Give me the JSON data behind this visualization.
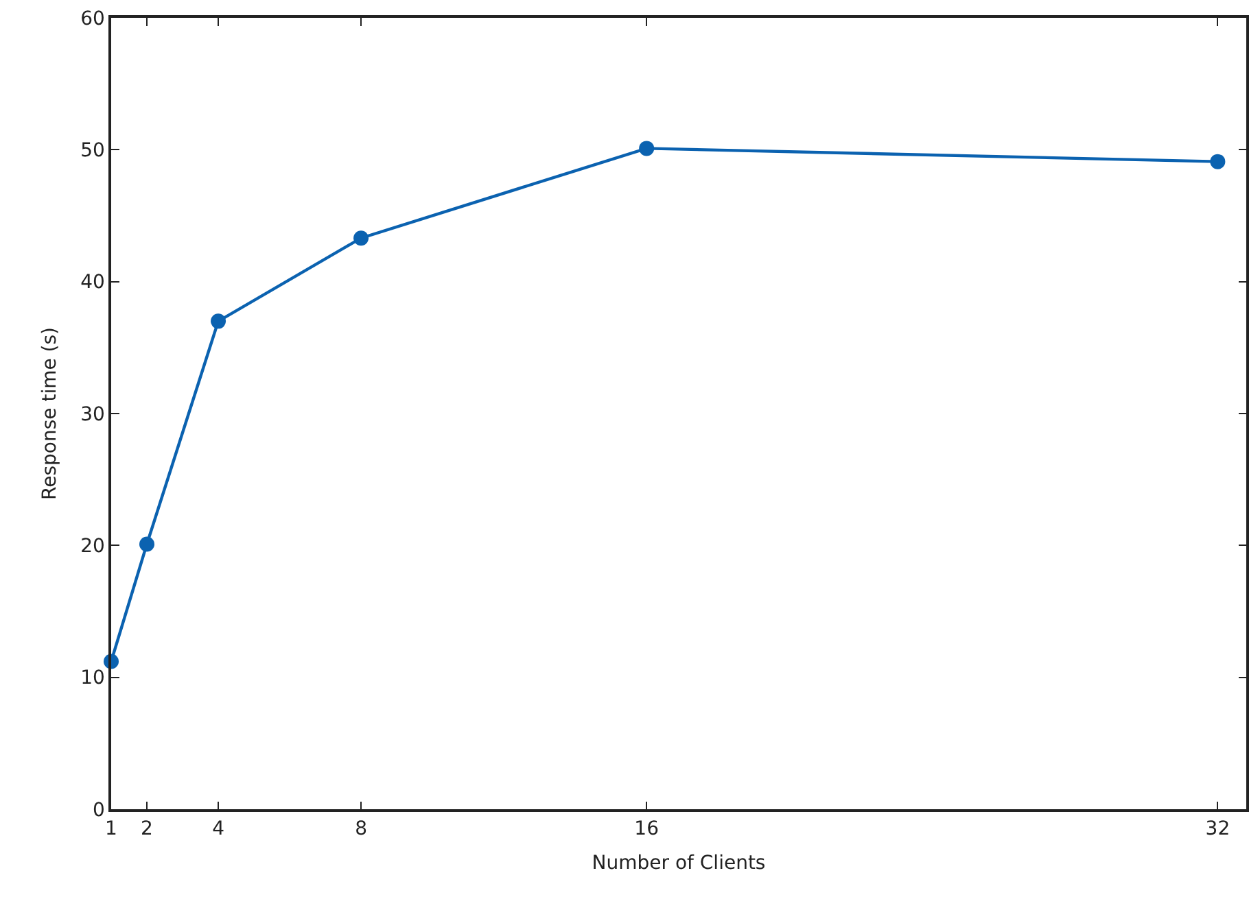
{
  "chart_data": {
    "type": "line",
    "xlabel": "Number of Clients",
    "ylabel": "Response time (s)",
    "x": [
      1,
      2,
      4,
      8,
      16,
      32
    ],
    "series": [
      {
        "color": "#0b62b0",
        "values": [
          11.2,
          20.1,
          37.0,
          43.3,
          50.1,
          49.1
        ]
      }
    ],
    "xlim": [
      1,
      32.8
    ],
    "xticks": [
      1,
      2,
      4,
      8,
      16,
      32
    ],
    "ylim": [
      0,
      60
    ],
    "yticks": [
      0,
      10,
      20,
      30,
      40,
      50,
      60
    ],
    "grid": false,
    "marker": "circle",
    "line_style": "solid"
  }
}
